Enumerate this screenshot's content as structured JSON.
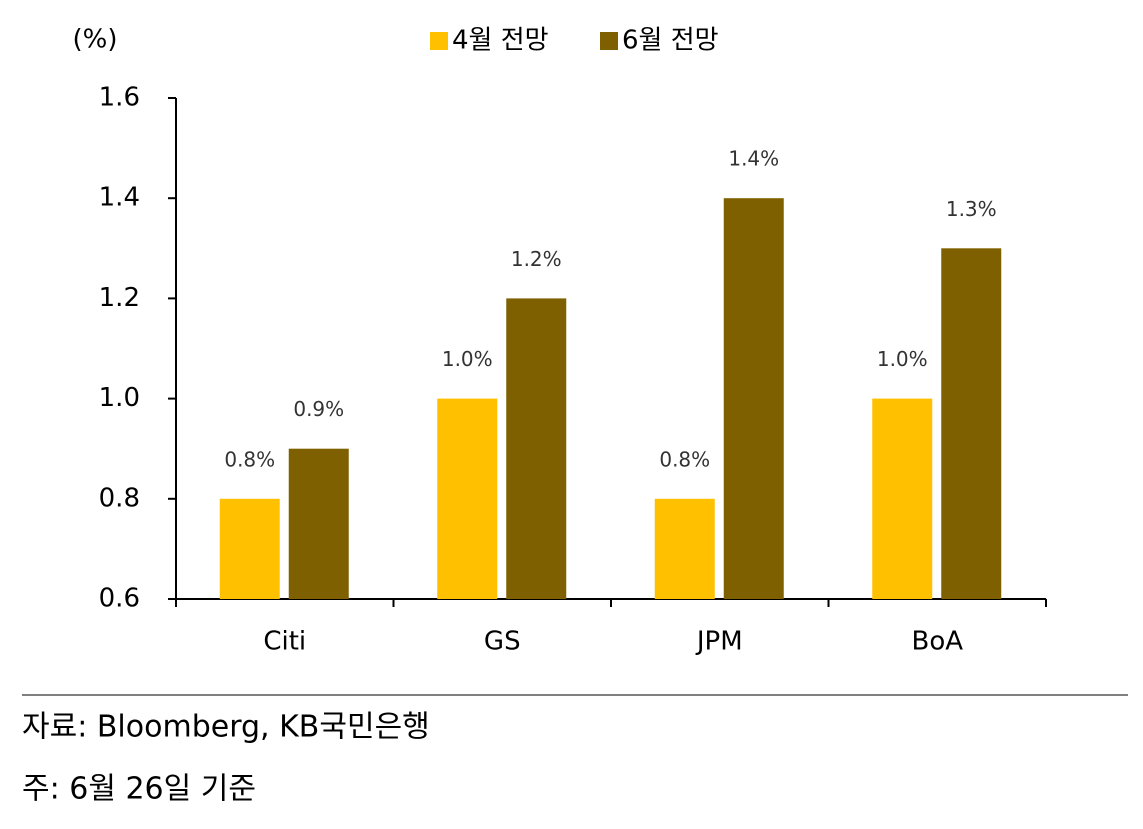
{
  "chart_data": {
    "type": "bar",
    "y_label": "(%)",
    "categories": [
      "Citi",
      "GS",
      "JPM",
      "BoA"
    ],
    "series": [
      {
        "name": "4월 전망",
        "color": "#FFC000",
        "values": [
          0.8,
          1.0,
          0.8,
          1.0
        ],
        "value_labels": [
          "0.8%",
          "1.0%",
          "0.8%",
          "1.0%"
        ]
      },
      {
        "name": "6월 전망",
        "color": "#7F6000",
        "values": [
          0.9,
          1.2,
          1.4,
          1.3
        ],
        "value_labels": [
          "0.9%",
          "1.2%",
          "1.4%",
          "1.3%"
        ]
      }
    ],
    "ylim": [
      0.6,
      1.6
    ],
    "yticks": [
      0.6,
      0.8,
      {
        "value": 1.0,
        "label": "1.0"
      },
      1.2,
      1.4,
      1.6
    ],
    "grid": false,
    "source": "자료: Bloomberg, KB국민은행",
    "note": "주: 6월 26일 기준"
  }
}
